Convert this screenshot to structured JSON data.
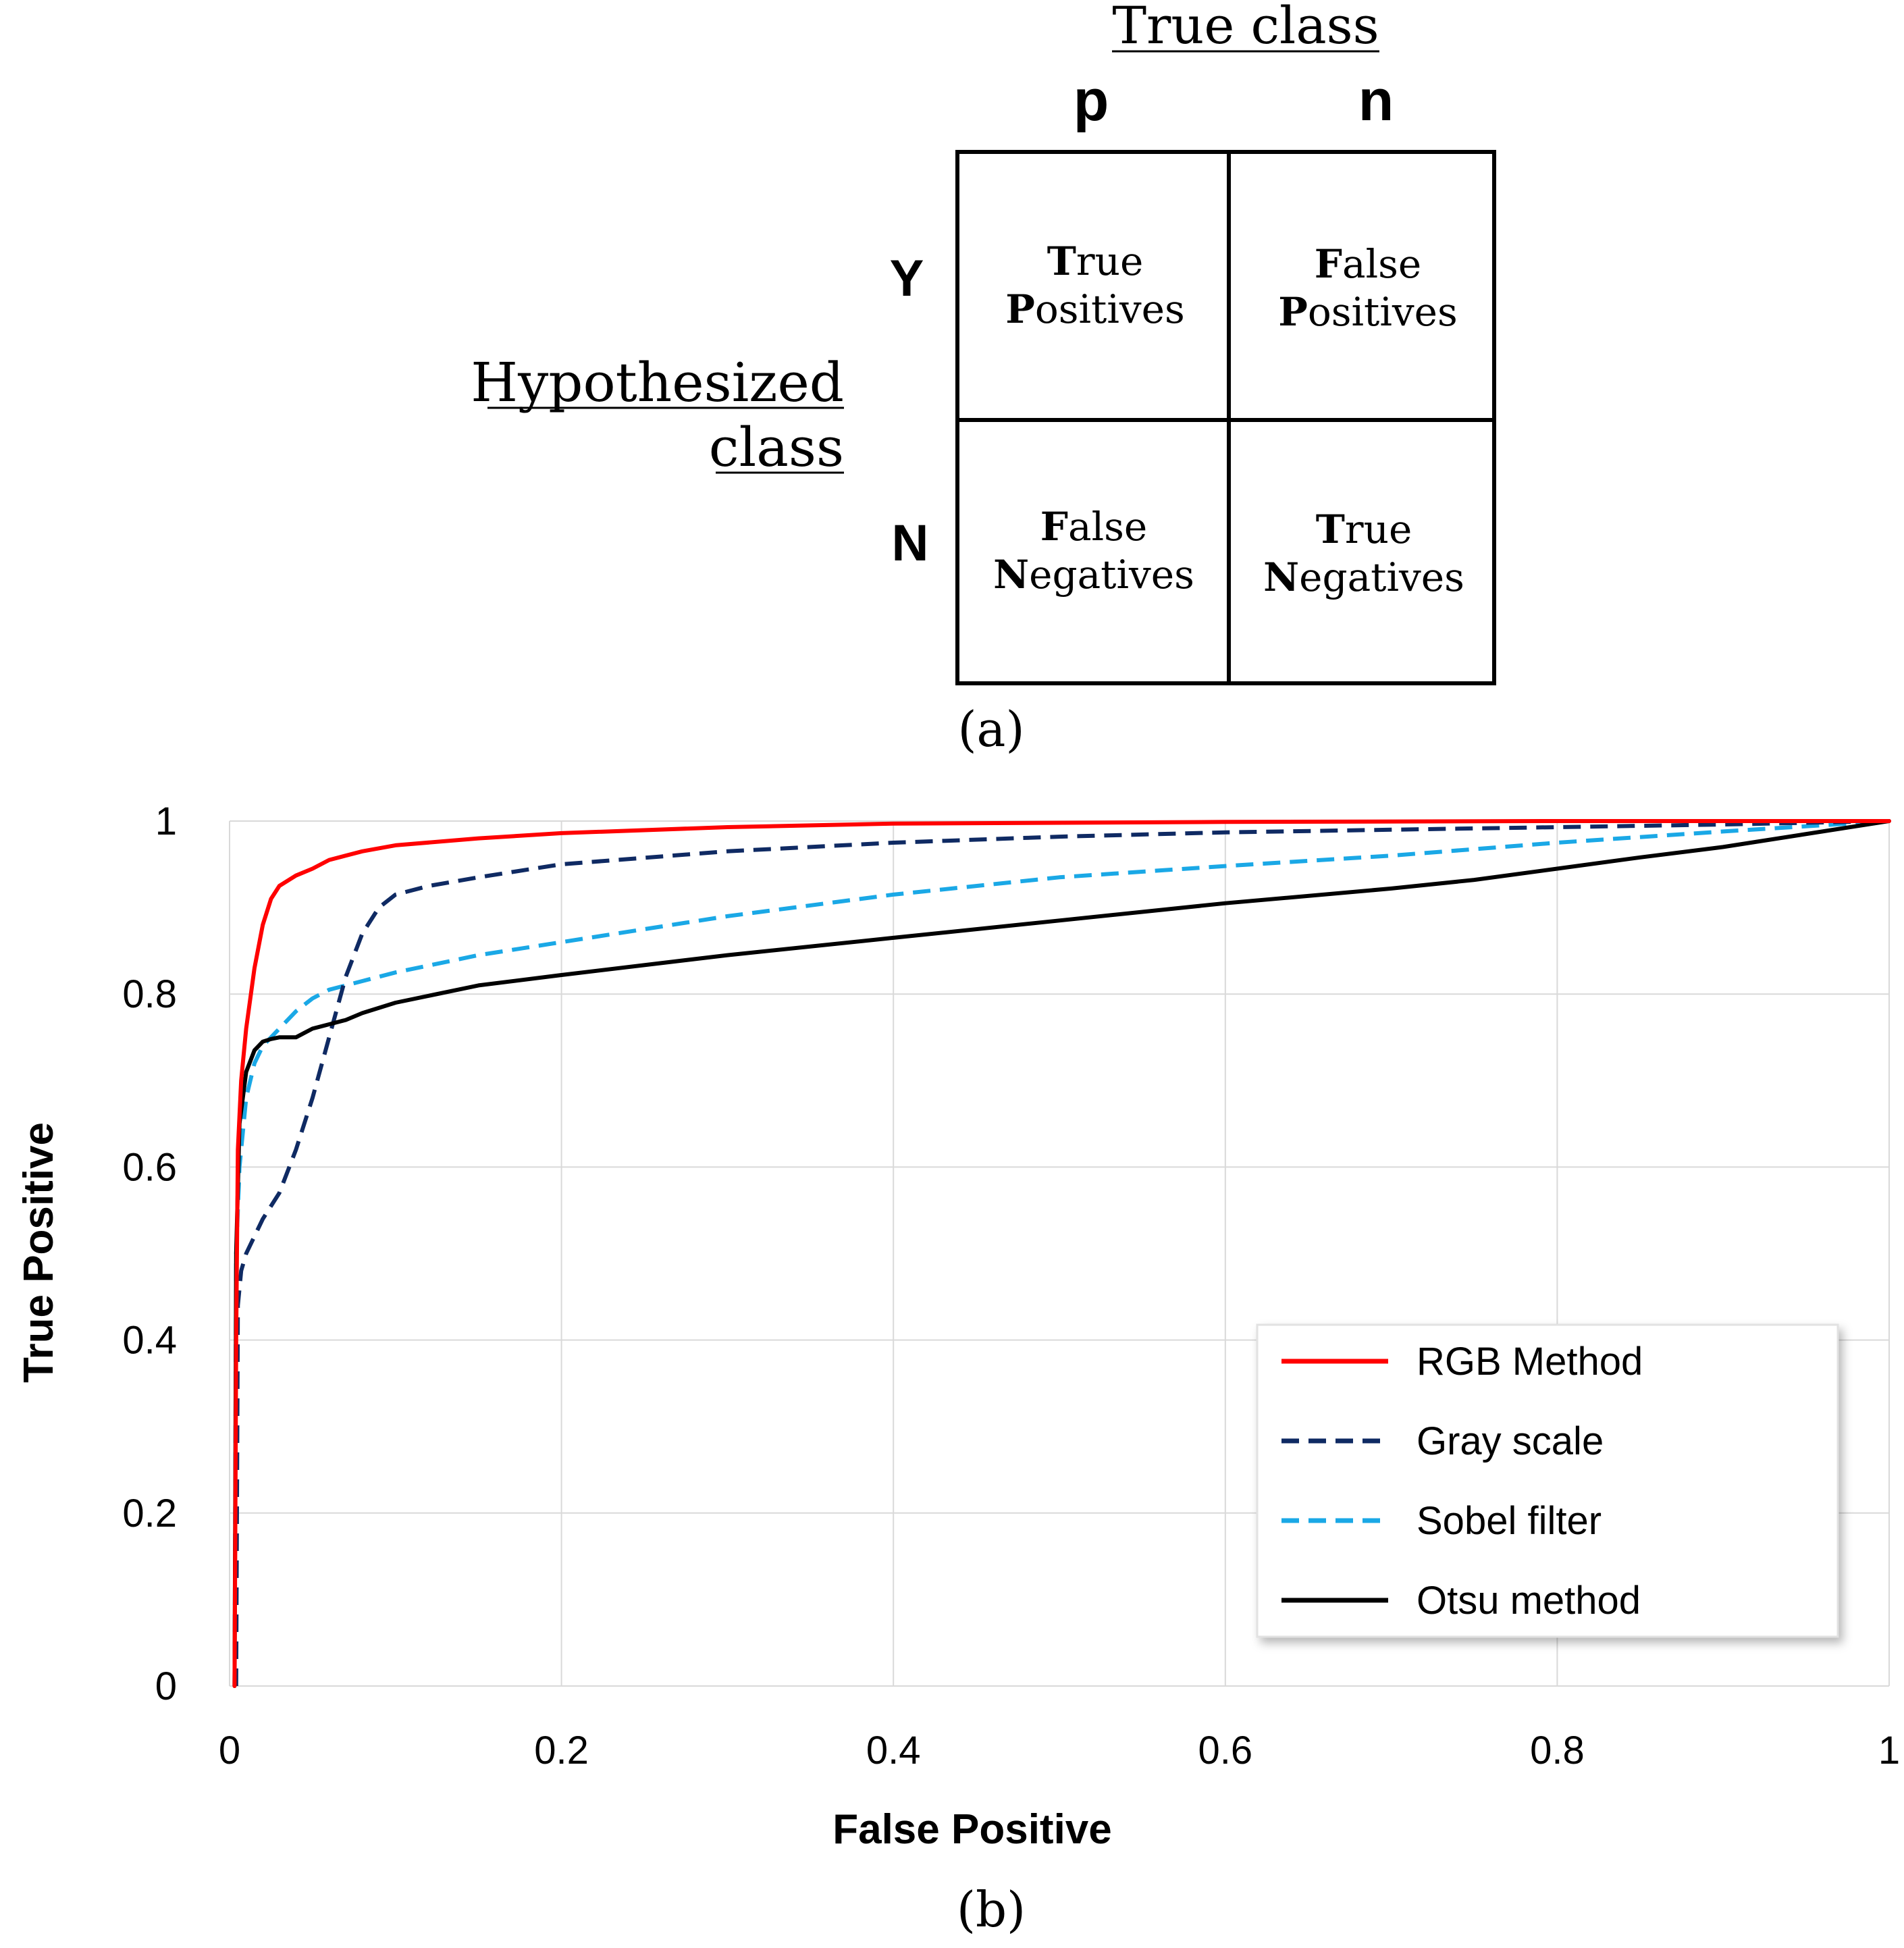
{
  "panel_a": {
    "caption": "(a)",
    "true_class_label": "True class",
    "col_headers": [
      "p",
      "n"
    ],
    "row_headers": [
      "Y",
      "N"
    ],
    "hypothesized_line1": "Hypothesized",
    "hypothesized_line2": "class",
    "cells": {
      "tp": {
        "first": "T",
        "first_rest": "rue",
        "second": "P",
        "second_rest": "ositives"
      },
      "fp": {
        "first": "F",
        "first_rest": "alse",
        "second": "P",
        "second_rest": "ositives"
      },
      "fn": {
        "first": "F",
        "first_rest": "alse",
        "second": "N",
        "second_rest": "egatives"
      },
      "tn": {
        "first": "T",
        "first_rest": "rue",
        "second": "N",
        "second_rest": "egatives"
      }
    }
  },
  "panel_b": {
    "caption": "(b)"
  },
  "chart_data": {
    "type": "line",
    "title": "",
    "xlabel": "False Positive",
    "ylabel": "True Positive",
    "xlim": [
      0,
      1
    ],
    "ylim": [
      0,
      1
    ],
    "xticks": [
      0,
      0.2,
      0.4,
      0.6,
      0.8,
      1
    ],
    "xtick_labels": [
      "0",
      "0.2",
      "0.4",
      "0.6",
      "0.8",
      "1"
    ],
    "yticks": [
      0,
      0.2,
      0.4,
      0.6,
      0.8,
      1
    ],
    "ytick_labels": [
      "0",
      "0.2",
      "0.4",
      "0.6",
      "0.8",
      "1"
    ],
    "grid": true,
    "legend_position": "bottom-right",
    "series": [
      {
        "name": "RGB Method",
        "color": "#ff0000",
        "dash": "solid",
        "x": [
          0.003,
          0.004,
          0.005,
          0.007,
          0.01,
          0.015,
          0.02,
          0.025,
          0.03,
          0.04,
          0.05,
          0.06,
          0.08,
          0.1,
          0.15,
          0.2,
          0.3,
          0.4,
          0.6,
          0.8,
          1.0
        ],
        "y": [
          0.0,
          0.4,
          0.62,
          0.7,
          0.76,
          0.83,
          0.88,
          0.91,
          0.925,
          0.937,
          0.945,
          0.955,
          0.965,
          0.972,
          0.98,
          0.986,
          0.993,
          0.997,
          0.999,
          1.0,
          1.0
        ]
      },
      {
        "name": "Gray scale",
        "color": "#0f2a63",
        "dash": "dashed",
        "x": [
          0.004,
          0.005,
          0.007,
          0.01,
          0.015,
          0.02,
          0.03,
          0.04,
          0.05,
          0.06,
          0.07,
          0.08,
          0.09,
          0.1,
          0.12,
          0.15,
          0.2,
          0.3,
          0.4,
          0.5,
          0.6,
          0.7,
          0.8,
          0.9,
          1.0
        ],
        "y": [
          0.0,
          0.44,
          0.48,
          0.5,
          0.52,
          0.54,
          0.57,
          0.62,
          0.68,
          0.75,
          0.82,
          0.87,
          0.9,
          0.915,
          0.925,
          0.935,
          0.95,
          0.965,
          0.975,
          0.982,
          0.987,
          0.99,
          0.993,
          0.996,
          1.0
        ]
      },
      {
        "name": "Sobel filter",
        "color": "#1aa8e6",
        "dash": "dashed",
        "x": [
          0.003,
          0.004,
          0.006,
          0.01,
          0.015,
          0.02,
          0.03,
          0.04,
          0.05,
          0.06,
          0.07,
          0.08,
          0.1,
          0.15,
          0.2,
          0.3,
          0.4,
          0.5,
          0.6,
          0.7,
          0.8,
          0.9,
          1.0
        ],
        "y": [
          0.0,
          0.5,
          0.6,
          0.68,
          0.72,
          0.74,
          0.76,
          0.78,
          0.795,
          0.805,
          0.81,
          0.815,
          0.825,
          0.845,
          0.86,
          0.89,
          0.915,
          0.935,
          0.948,
          0.96,
          0.975,
          0.988,
          1.0
        ]
      },
      {
        "name": "Otsu method",
        "color": "#000000",
        "dash": "solid",
        "x": [
          0.003,
          0.004,
          0.006,
          0.01,
          0.015,
          0.02,
          0.025,
          0.03,
          0.04,
          0.045,
          0.05,
          0.06,
          0.07,
          0.08,
          0.1,
          0.15,
          0.2,
          0.3,
          0.4,
          0.5,
          0.6,
          0.7,
          0.75,
          0.8,
          0.85,
          0.9,
          1.0
        ],
        "y": [
          0.0,
          0.5,
          0.65,
          0.71,
          0.735,
          0.745,
          0.748,
          0.75,
          0.75,
          0.755,
          0.76,
          0.765,
          0.77,
          0.778,
          0.79,
          0.81,
          0.822,
          0.845,
          0.865,
          0.885,
          0.905,
          0.922,
          0.932,
          0.945,
          0.958,
          0.97,
          1.0
        ]
      }
    ]
  }
}
